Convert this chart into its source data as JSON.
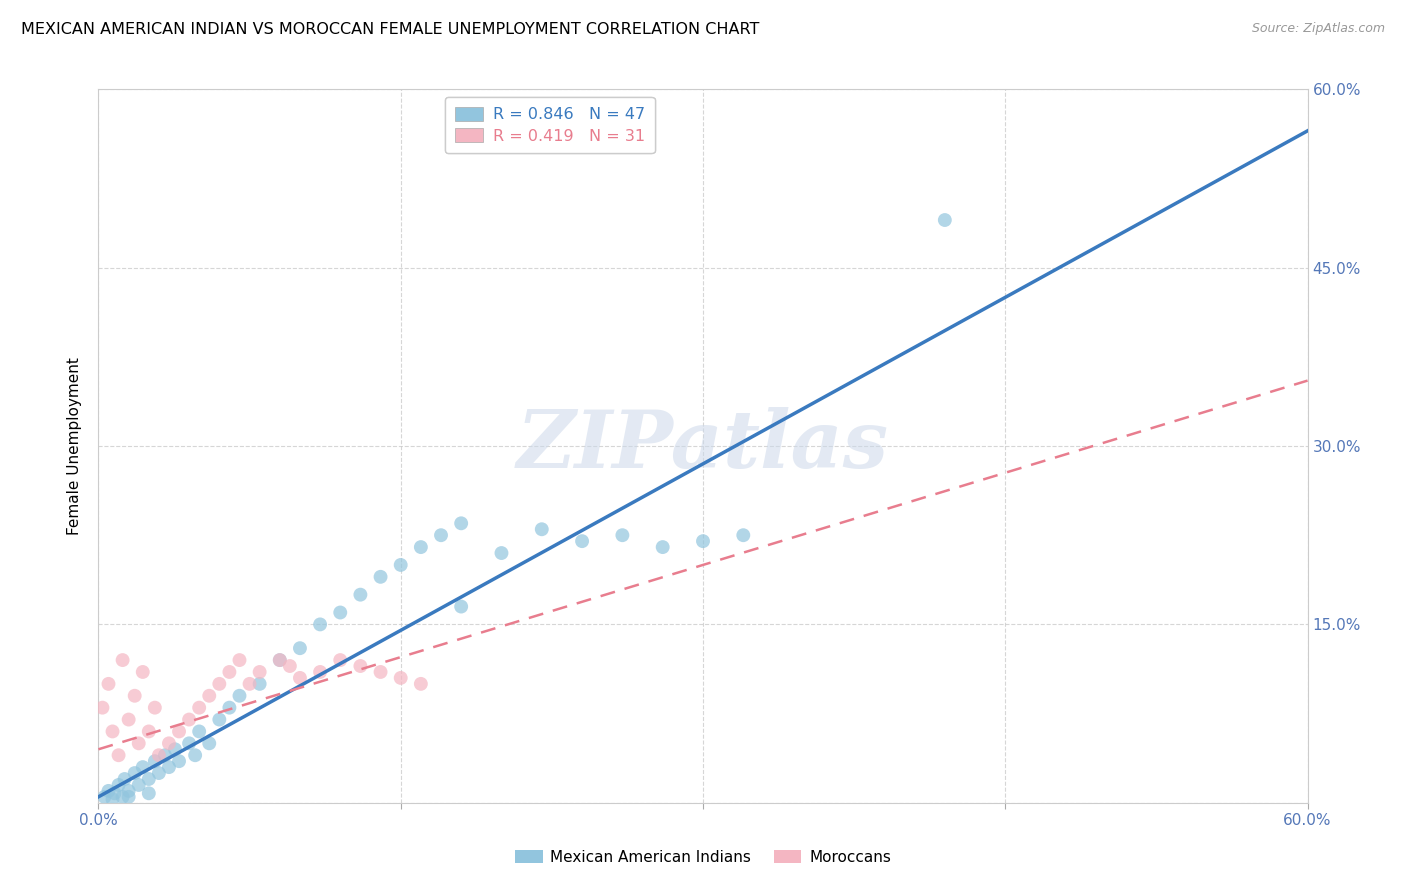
{
  "title": "MEXICAN AMERICAN INDIAN VS MOROCCAN FEMALE UNEMPLOYMENT CORRELATION CHART",
  "source": "Source: ZipAtlas.com",
  "ylabel": "Female Unemployment",
  "xlim": [
    0.0,
    0.6
  ],
  "ylim": [
    0.0,
    0.6
  ],
  "xticks": [
    0.0,
    0.15,
    0.3,
    0.45,
    0.6
  ],
  "yticks": [
    0.0,
    0.15,
    0.3,
    0.45,
    0.6
  ],
  "xtick_labels": [
    "0.0%",
    "",
    "",
    "",
    "60.0%"
  ],
  "ytick_labels_right": [
    "",
    "15.0%",
    "30.0%",
    "45.0%",
    "60.0%"
  ],
  "watermark": "ZIPatlas",
  "blue_R": "0.846",
  "blue_N": "47",
  "pink_R": "0.419",
  "pink_N": "31",
  "blue_color": "#92c5de",
  "pink_color": "#f4b6c2",
  "blue_line_color": "#3a7abf",
  "pink_line_color": "#e87d8e",
  "axis_color": "#5578b8",
  "legend_label_blue": "Mexican American Indians",
  "legend_label_pink": "Moroccans",
  "blue_scatter_x": [
    0.003,
    0.005,
    0.007,
    0.008,
    0.01,
    0.012,
    0.013,
    0.015,
    0.018,
    0.02,
    0.022,
    0.025,
    0.028,
    0.03,
    0.033,
    0.035,
    0.038,
    0.04,
    0.045,
    0.048,
    0.05,
    0.055,
    0.06,
    0.065,
    0.07,
    0.08,
    0.09,
    0.1,
    0.11,
    0.12,
    0.13,
    0.14,
    0.15,
    0.16,
    0.17,
    0.18,
    0.2,
    0.22,
    0.24,
    0.26,
    0.28,
    0.3,
    0.32,
    0.18,
    0.42,
    0.015,
    0.025
  ],
  "blue_scatter_y": [
    0.005,
    0.01,
    0.003,
    0.008,
    0.015,
    0.005,
    0.02,
    0.01,
    0.025,
    0.015,
    0.03,
    0.02,
    0.035,
    0.025,
    0.04,
    0.03,
    0.045,
    0.035,
    0.05,
    0.04,
    0.06,
    0.05,
    0.07,
    0.08,
    0.09,
    0.1,
    0.12,
    0.13,
    0.15,
    0.16,
    0.175,
    0.19,
    0.2,
    0.215,
    0.225,
    0.235,
    0.21,
    0.23,
    0.22,
    0.225,
    0.215,
    0.22,
    0.225,
    0.165,
    0.49,
    0.005,
    0.008
  ],
  "pink_scatter_x": [
    0.002,
    0.005,
    0.007,
    0.01,
    0.012,
    0.015,
    0.018,
    0.02,
    0.022,
    0.025,
    0.028,
    0.03,
    0.035,
    0.04,
    0.045,
    0.05,
    0.055,
    0.06,
    0.065,
    0.07,
    0.075,
    0.08,
    0.09,
    0.095,
    0.1,
    0.11,
    0.12,
    0.13,
    0.14,
    0.15,
    0.16
  ],
  "pink_scatter_y": [
    0.08,
    0.1,
    0.06,
    0.04,
    0.12,
    0.07,
    0.09,
    0.05,
    0.11,
    0.06,
    0.08,
    0.04,
    0.05,
    0.06,
    0.07,
    0.08,
    0.09,
    0.1,
    0.11,
    0.12,
    0.1,
    0.11,
    0.12,
    0.115,
    0.105,
    0.11,
    0.12,
    0.115,
    0.11,
    0.105,
    0.1
  ],
  "blue_line_x0": 0.0,
  "blue_line_y0": 0.005,
  "blue_line_x1": 0.6,
  "blue_line_y1": 0.565,
  "pink_line_x0": 0.0,
  "pink_line_y0": 0.045,
  "pink_line_x1": 0.6,
  "pink_line_y1": 0.355,
  "background_color": "#ffffff",
  "grid_color": "#cccccc",
  "title_fontsize": 11.5,
  "source_fontsize": 9,
  "ylabel_fontsize": 11,
  "tick_fontsize": 11
}
